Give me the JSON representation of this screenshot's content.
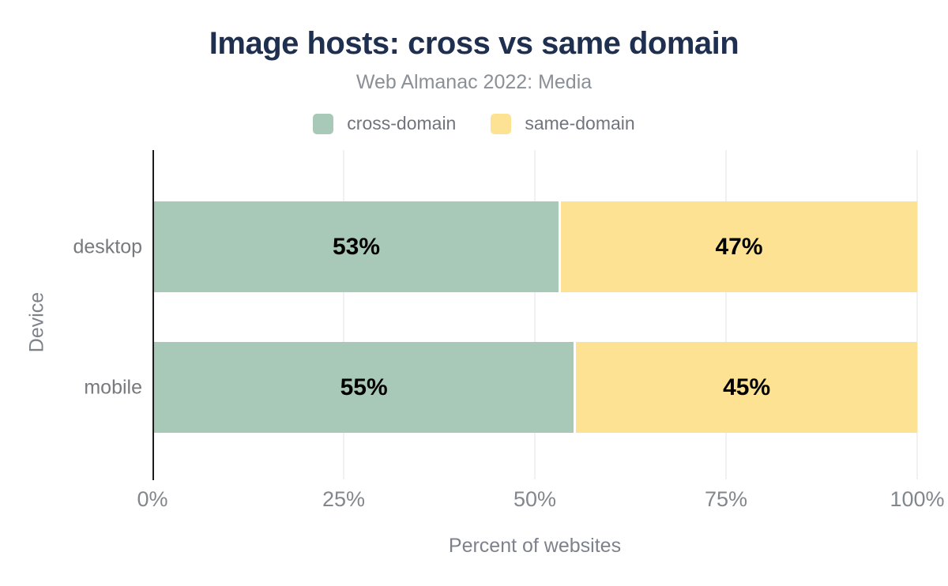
{
  "chart_data": {
    "type": "bar",
    "orientation": "horizontal",
    "stacked": true,
    "title": "Image hosts: cross vs same domain",
    "subtitle": "Web Almanac 2022: Media",
    "xlabel": "Percent of websites",
    "ylabel": "Device",
    "categories": [
      "desktop",
      "mobile"
    ],
    "series": [
      {
        "name": "cross-domain",
        "color": "#a8c9b7",
        "values": [
          53,
          55
        ]
      },
      {
        "name": "same-domain",
        "color": "#fde293",
        "values": [
          47,
          45
        ]
      }
    ],
    "value_suffix": "%",
    "xlim": [
      0,
      100
    ],
    "xticks": [
      {
        "value": 0,
        "label": "0%"
      },
      {
        "value": 25,
        "label": "25%"
      },
      {
        "value": 50,
        "label": "50%"
      },
      {
        "value": 75,
        "label": "75%"
      },
      {
        "value": 100,
        "label": "100%"
      }
    ],
    "grid": "vertical",
    "legend_position": "top"
  },
  "colors": {
    "background": "#ffffff",
    "title": "#1f2f4f",
    "subtitle": "#8a9096",
    "legend_text": "#70757d",
    "category_text": "#77797d",
    "tick_text": "#82868d",
    "axis_title_text": "#7d828a",
    "value_label": "#000000",
    "axis_line": "#1c1c1c",
    "gridline": "#f0f1f3"
  }
}
